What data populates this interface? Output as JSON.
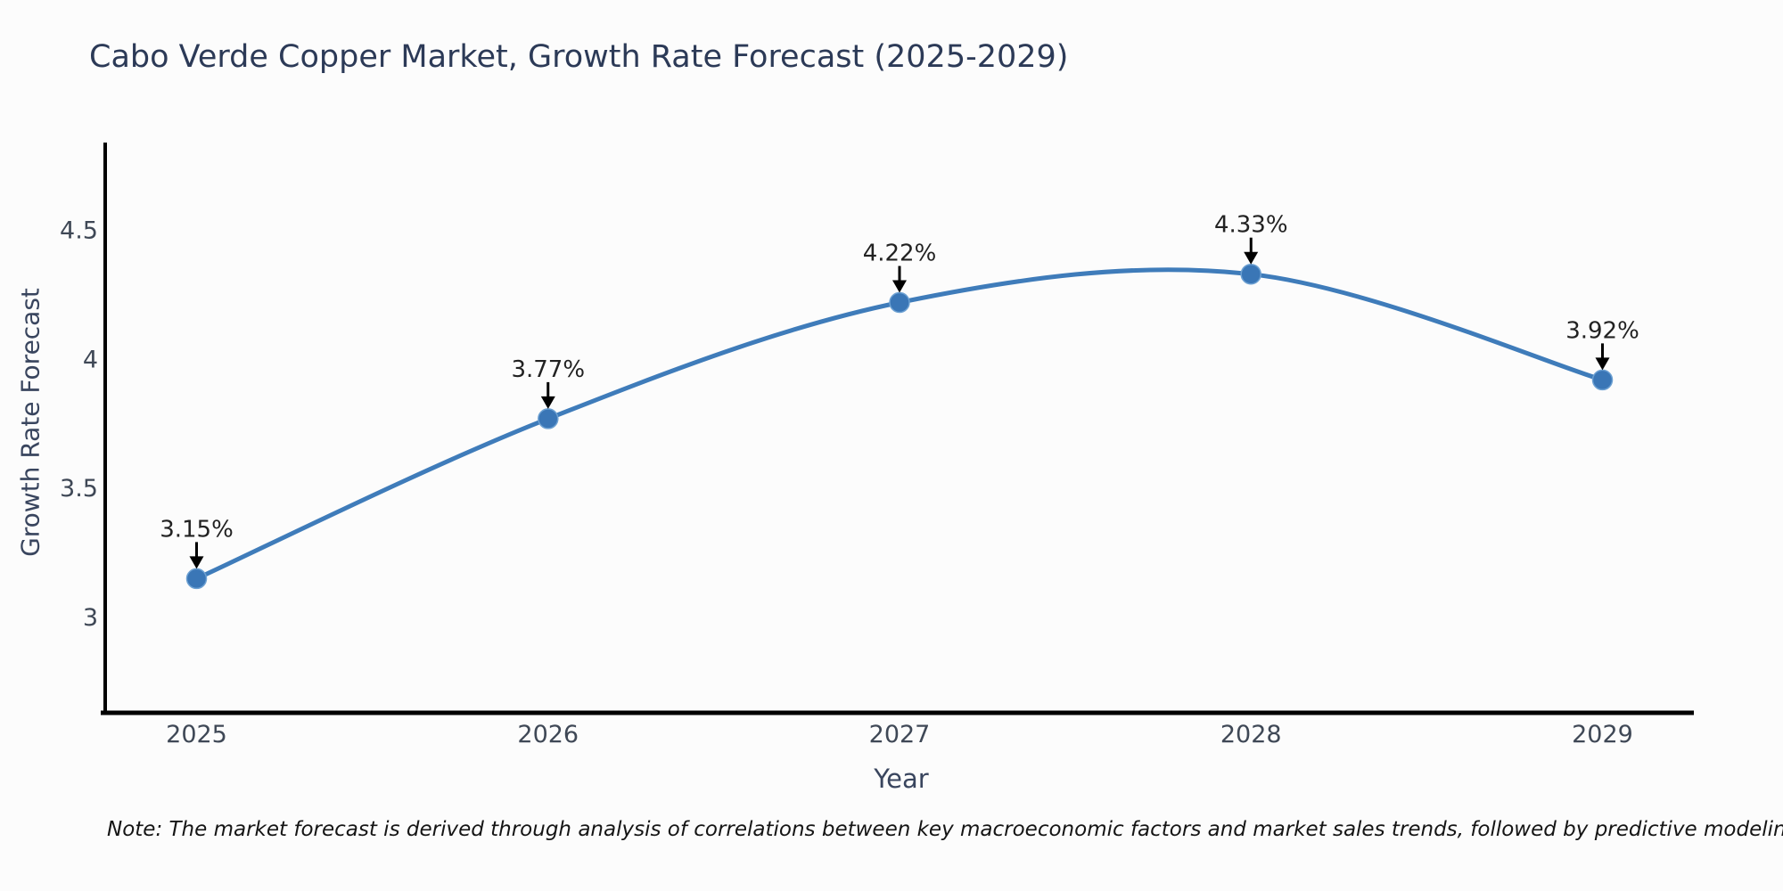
{
  "chart_data": {
    "type": "line",
    "curve": "spline",
    "title": "Cabo Verde Copper Market, Growth Rate Forecast (2025-2029)",
    "xlabel": "Year",
    "ylabel": "Growth Rate Forecast",
    "note": "Note: The market forecast is derived through analysis of correlations between key macroeconomic factors and market sales trends, followed by predictive modeling to project future sales",
    "x": [
      2025,
      2026,
      2027,
      2028,
      2029
    ],
    "series": [
      {
        "name": "Growth Rate Forecast",
        "values": [
          3.15,
          3.77,
          4.22,
          4.33,
          3.92
        ]
      }
    ],
    "point_labels": [
      "3.15%",
      "3.77%",
      "4.22%",
      "4.33%",
      "3.92%"
    ],
    "xtick_labels": [
      "2025",
      "2026",
      "2027",
      "2028",
      "2029"
    ],
    "ytick_values": [
      3,
      3.5,
      4,
      4.5
    ],
    "ytick_labels": [
      "3",
      "3.5",
      "4",
      "4.5"
    ],
    "xlim": [
      2024.74,
      2029.26
    ],
    "ylim": [
      2.63,
      4.84
    ],
    "grid": false,
    "legend": "none",
    "line_color": "#3f7cba",
    "marker_color": "#3a76b6",
    "marker_edge_color": "#6ca0d2",
    "axis_color": "#000000",
    "annotation_color": "#000000",
    "background_color": "#fcfcfc"
  }
}
